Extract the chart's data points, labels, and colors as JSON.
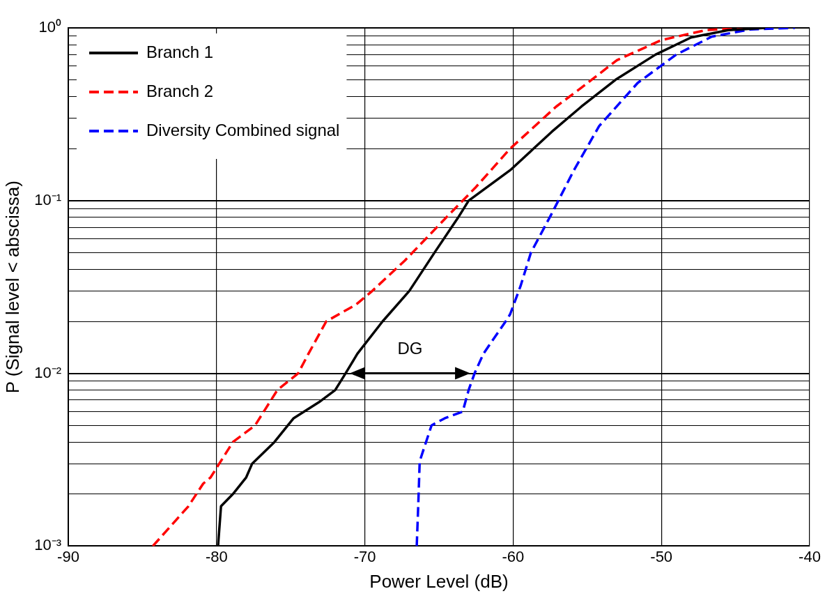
{
  "chart_data": {
    "type": "line",
    "xlabel": "Power Level (dB)",
    "ylabel": "P (Signal level < abscissa)",
    "xlim": [
      -90,
      -40
    ],
    "xticks": [
      -90,
      -80,
      -70,
      -60,
      -50,
      -40
    ],
    "ylim": [
      0.001,
      1
    ],
    "log": "y",
    "yticks": [
      {
        "value": 0.001,
        "label": "10⁻³"
      },
      {
        "value": 0.002,
        "label": null
      },
      {
        "value": 0.003,
        "label": null
      },
      {
        "value": 0.004,
        "label": null
      },
      {
        "value": 0.005,
        "label": null
      },
      {
        "value": 0.006,
        "label": null
      },
      {
        "value": 0.007,
        "label": null
      },
      {
        "value": 0.008,
        "label": null
      },
      {
        "value": 0.009,
        "label": null
      },
      {
        "value": 0.01,
        "label": "10⁻²"
      },
      {
        "value": 0.02,
        "label": null
      },
      {
        "value": 0.03,
        "label": null
      },
      {
        "value": 0.04,
        "label": null
      },
      {
        "value": 0.05,
        "label": null
      },
      {
        "value": 0.06,
        "label": null
      },
      {
        "value": 0.07,
        "label": null
      },
      {
        "value": 0.08,
        "label": null
      },
      {
        "value": 0.09,
        "label": null
      },
      {
        "value": 0.1,
        "label": "10⁻¹"
      },
      {
        "value": 0.2,
        "label": null
      },
      {
        "value": 0.3,
        "label": null
      },
      {
        "value": 0.4,
        "label": null
      },
      {
        "value": 0.5,
        "label": null
      },
      {
        "value": 0.6,
        "label": null
      },
      {
        "value": 0.7,
        "label": null
      },
      {
        "value": 0.8,
        "label": null
      },
      {
        "value": 0.9,
        "label": null
      },
      {
        "value": 1,
        "label": "10⁰"
      }
    ],
    "grid": true,
    "legend": "top left",
    "marker": "none",
    "series": [
      {
        "name": "Branch 1",
        "color": "#000000",
        "line_style": "solid",
        "x": [
          -79.9,
          -79.7,
          -78.9,
          -78,
          -77.6,
          -76.1,
          -74.8,
          -73.1,
          -72,
          -71.3,
          -70.5,
          -68.8,
          -67,
          -65.3,
          -63.7,
          -63,
          -60.2,
          -57.4,
          -55.4,
          -53.1,
          -50.4,
          -48,
          -45.5,
          -43
        ],
        "values": [
          0.001,
          0.0017,
          0.002,
          0.0025,
          0.003,
          0.004,
          0.0055,
          0.0068,
          0.008,
          0.01,
          0.013,
          0.02,
          0.03,
          0.05,
          0.08,
          0.1,
          0.15,
          0.25,
          0.35,
          0.5,
          0.7,
          0.88,
          0.97,
          1
        ]
      },
      {
        "name": "Branch 2",
        "color": "#ff0000",
        "line_style": "dashed",
        "x": [
          -84.3,
          -81.9,
          -80.9,
          -80.4,
          -78.9,
          -77.4,
          -75.9,
          -74.5,
          -73.8,
          -72.6,
          -70.6,
          -69.5,
          -67.3,
          -64.5,
          -62.5,
          -60.2,
          -57.1,
          -55.4,
          -53,
          -50,
          -47,
          -44.5
        ],
        "values": [
          0.001,
          0.0017,
          0.0023,
          0.0025,
          0.004,
          0.005,
          0.008,
          0.01,
          0.013,
          0.02,
          0.025,
          0.03,
          0.045,
          0.08,
          0.12,
          0.2,
          0.35,
          0.45,
          0.65,
          0.85,
          0.97,
          1
        ]
      },
      {
        "name": "Diversity Combined signal",
        "color": "#0000ff",
        "line_style": "dashed",
        "x": [
          -66.5,
          -66.4,
          -66.3,
          -65.5,
          -64.6,
          -63.4,
          -63,
          -62.6,
          -62,
          -60.5,
          -60.2,
          -59.5,
          -58.8,
          -57.4,
          -55.9,
          -54.2,
          -51.6,
          -49,
          -46.6,
          -44,
          -41
        ],
        "values": [
          0.001,
          0.0017,
          0.0031,
          0.005,
          0.0055,
          0.006,
          0.008,
          0.01,
          0.013,
          0.02,
          0.022,
          0.032,
          0.05,
          0.084,
          0.15,
          0.27,
          0.48,
          0.7,
          0.89,
          0.98,
          1
        ]
      }
    ],
    "annotations": [
      "DG"
    ]
  }
}
